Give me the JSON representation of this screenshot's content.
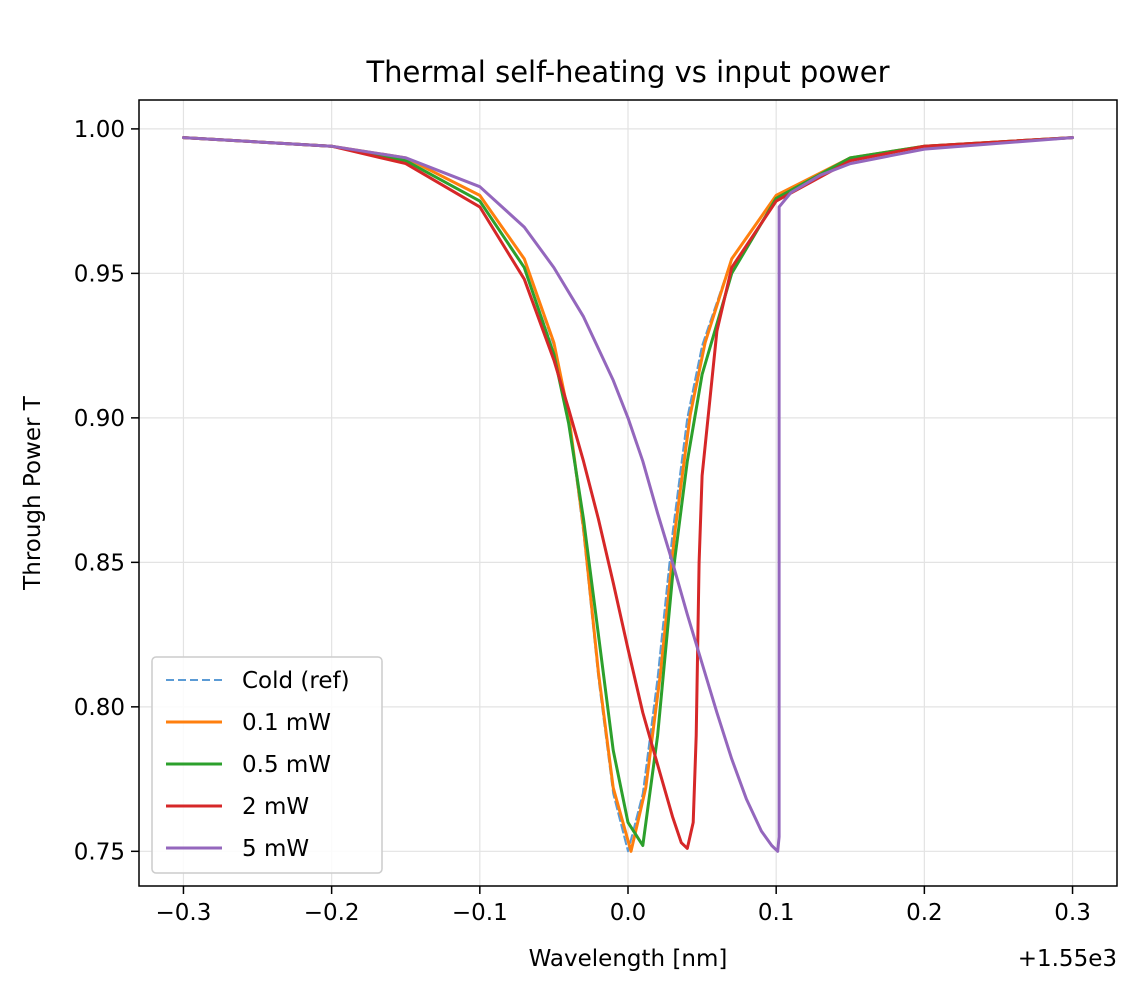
{
  "chart_data": {
    "type": "line",
    "title": "Thermal self-heating vs input power",
    "xlabel": "Wavelength [nm]",
    "ylabel": "Through Power T",
    "x_offset_label": "+1.55e3",
    "xlim": [
      -0.33,
      0.33
    ],
    "ylim": [
      0.738,
      1.01
    ],
    "xticks": [
      -0.3,
      -0.2,
      -0.1,
      0.0,
      0.1,
      0.2,
      0.3
    ],
    "xtick_labels": [
      "−0.3",
      "−0.2",
      "−0.1",
      "0.0",
      "0.1",
      "0.2",
      "0.3"
    ],
    "yticks": [
      0.75,
      0.8,
      0.85,
      0.9,
      0.95,
      1.0
    ],
    "ytick_labels": [
      "0.75",
      "0.80",
      "0.85",
      "0.90",
      "0.95",
      "1.00"
    ],
    "grid": true,
    "legend_position": "lower-left",
    "series": [
      {
        "name": "Cold (ref)",
        "color": "#5b9bd5",
        "style": "dashed",
        "x": [
          -0.3,
          -0.2,
          -0.15,
          -0.1,
          -0.07,
          -0.05,
          -0.04,
          -0.03,
          -0.02,
          -0.01,
          0.0,
          0.01,
          0.02,
          0.03,
          0.04,
          0.05,
          0.07,
          0.1,
          0.15,
          0.2,
          0.3
        ],
        "y": [
          0.997,
          0.994,
          0.99,
          0.977,
          0.955,
          0.925,
          0.9,
          0.86,
          0.81,
          0.77,
          0.75,
          0.77,
          0.81,
          0.86,
          0.9,
          0.925,
          0.955,
          0.977,
          0.99,
          0.994,
          0.997
        ]
      },
      {
        "name": "0.1 mW",
        "color": "#ff7f0e",
        "style": "solid",
        "x": [
          -0.3,
          -0.2,
          -0.15,
          -0.1,
          -0.07,
          -0.05,
          -0.04,
          -0.03,
          -0.02,
          -0.01,
          0.002,
          0.012,
          0.022,
          0.032,
          0.042,
          0.052,
          0.07,
          0.1,
          0.15,
          0.2,
          0.3
        ],
        "y": [
          0.997,
          0.994,
          0.99,
          0.977,
          0.955,
          0.926,
          0.901,
          0.862,
          0.812,
          0.772,
          0.75,
          0.772,
          0.812,
          0.862,
          0.901,
          0.926,
          0.955,
          0.977,
          0.99,
          0.994,
          0.997
        ]
      },
      {
        "name": "0.5 mW",
        "color": "#2ca02c",
        "style": "solid",
        "x": [
          -0.3,
          -0.2,
          -0.15,
          -0.1,
          -0.07,
          -0.05,
          -0.04,
          -0.03,
          -0.02,
          -0.01,
          0.0,
          0.01,
          0.02,
          0.03,
          0.04,
          0.05,
          0.07,
          0.1,
          0.15,
          0.2,
          0.3
        ],
        "y": [
          0.997,
          0.994,
          0.989,
          0.975,
          0.952,
          0.922,
          0.898,
          0.865,
          0.825,
          0.785,
          0.76,
          0.752,
          0.79,
          0.845,
          0.885,
          0.915,
          0.95,
          0.976,
          0.99,
          0.994,
          0.997
        ]
      },
      {
        "name": "2 mW",
        "color": "#d62728",
        "style": "solid",
        "x": [
          -0.3,
          -0.2,
          -0.15,
          -0.1,
          -0.07,
          -0.05,
          -0.04,
          -0.03,
          -0.02,
          -0.01,
          0.0,
          0.01,
          0.02,
          0.03,
          0.036,
          0.04,
          0.044,
          0.046,
          0.048,
          0.05,
          0.06,
          0.07,
          0.1,
          0.15,
          0.2,
          0.3
        ],
        "y": [
          0.997,
          0.994,
          0.988,
          0.973,
          0.948,
          0.92,
          0.903,
          0.885,
          0.865,
          0.843,
          0.82,
          0.798,
          0.78,
          0.762,
          0.753,
          0.751,
          0.76,
          0.79,
          0.85,
          0.88,
          0.93,
          0.952,
          0.975,
          0.989,
          0.994,
          0.997
        ]
      },
      {
        "name": "5 mW",
        "color": "#9467bd",
        "style": "solid",
        "x": [
          -0.3,
          -0.2,
          -0.15,
          -0.1,
          -0.07,
          -0.05,
          -0.03,
          -0.01,
          0.0,
          0.01,
          0.02,
          0.03,
          0.04,
          0.05,
          0.06,
          0.07,
          0.08,
          0.09,
          0.097,
          0.101,
          0.102,
          0.102,
          0.11,
          0.13,
          0.15,
          0.2,
          0.3
        ],
        "y": [
          0.997,
          0.994,
          0.99,
          0.98,
          0.966,
          0.952,
          0.935,
          0.913,
          0.9,
          0.885,
          0.867,
          0.85,
          0.832,
          0.815,
          0.798,
          0.782,
          0.768,
          0.757,
          0.752,
          0.75,
          0.755,
          0.973,
          0.978,
          0.984,
          0.988,
          0.993,
          0.997
        ]
      }
    ]
  }
}
